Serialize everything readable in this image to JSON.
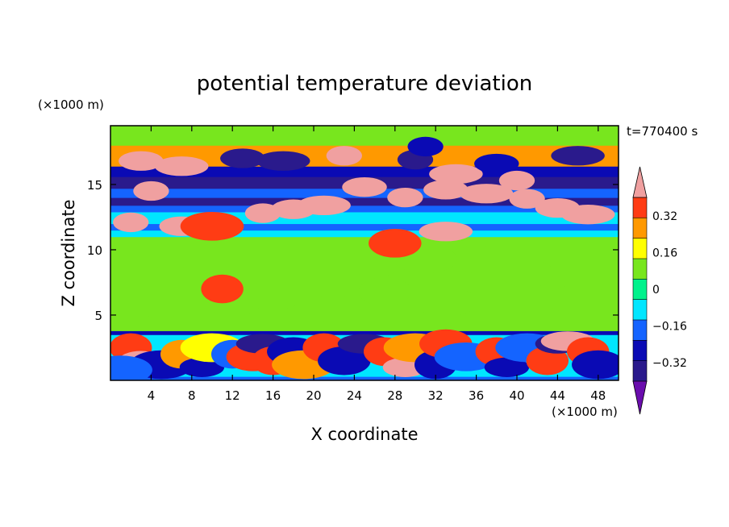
{
  "chart_data": {
    "type": "heatmap",
    "title": "potential temperature deviation",
    "xlabel": "X coordinate",
    "ylabel": "Z coordinate",
    "x_unit": "(×1000 m)",
    "y_unit": "(×1000 m)",
    "time_label": "t=770400 s",
    "xlim": [
      0,
      50
    ],
    "ylim": [
      0,
      19.5
    ],
    "x_ticks": [
      4,
      8,
      12,
      16,
      20,
      24,
      28,
      32,
      36,
      40,
      44,
      48
    ],
    "y_ticks": [
      5,
      10,
      15
    ],
    "colorbar": {
      "levels": [
        -0.4,
        -0.32,
        -0.24,
        -0.16,
        -0.08,
        0,
        0.08,
        0.16,
        0.24,
        0.32,
        0.4
      ],
      "labels": [
        "0.32",
        "0.16",
        "0",
        "−0.16",
        "−0.32"
      ],
      "label_values": [
        0.32,
        0.16,
        0,
        -0.16,
        -0.32
      ],
      "colors": [
        "#6a0dad",
        "#2a1a8c",
        "#0a0ab4",
        "#1464ff",
        "#00e6ff",
        "#00f28c",
        "#78e61e",
        "#ffff00",
        "#ff9900",
        "#ff3c14",
        "#f0a0a0"
      ],
      "extend": "both"
    },
    "bands": [
      {
        "zmin": 0.0,
        "zmax": 0.3,
        "value": -0.2
      },
      {
        "zmin": 0.3,
        "zmax": 3.5,
        "value": -0.1
      },
      {
        "zmin": 3.5,
        "zmax": 3.8,
        "value": -0.28
      },
      {
        "zmin": 3.8,
        "zmax": 11.0,
        "value": 0.0
      },
      {
        "zmin": 11.0,
        "zmax": 11.5,
        "value": -0.1
      },
      {
        "zmin": 11.5,
        "zmax": 12.0,
        "value": -0.2
      },
      {
        "zmin": 12.0,
        "zmax": 12.9,
        "value": -0.16
      },
      {
        "zmin": 12.9,
        "zmax": 13.4,
        "value": -0.2
      },
      {
        "zmin": 13.4,
        "zmax": 14.0,
        "value": -0.34
      },
      {
        "zmin": 14.0,
        "zmax": 14.7,
        "value": -0.2
      },
      {
        "zmin": 14.7,
        "zmax": 15.6,
        "value": -0.34
      },
      {
        "zmin": 15.6,
        "zmax": 16.4,
        "value": -0.27
      },
      {
        "zmin": 16.4,
        "zmax": 18.0,
        "value": 0.2
      },
      {
        "zmin": 18.0,
        "zmax": 19.5,
        "value": 0.05
      }
    ],
    "cells": [
      {
        "x": 5,
        "z": 5.8,
        "value": 0.05
      },
      {
        "x": 12,
        "z": 6.0,
        "value": 0.05
      },
      {
        "x": 16,
        "z": 6.5,
        "value": 0.05
      },
      {
        "x": 22,
        "z": 5.5,
        "value": 0.05
      },
      {
        "x": 27,
        "z": 6.8,
        "value": 0.05
      },
      {
        "x": 33,
        "z": 6.0,
        "value": 0.05
      },
      {
        "x": 36,
        "z": 9.3,
        "value": 0.05
      },
      {
        "x": 41,
        "z": 8.2,
        "value": 0.05
      },
      {
        "x": 46,
        "z": 6.2,
        "value": 0.05
      },
      {
        "x": 6,
        "z": 9.5,
        "value": 0.05
      },
      {
        "x": 26,
        "z": 9.0,
        "value": 0.05
      },
      {
        "x": 31,
        "z": 9.3,
        "value": 0.05
      },
      {
        "x": 2,
        "z": 2.5,
        "value": 0.3
      },
      {
        "x": 3,
        "z": 1.5,
        "value": 0.35
      },
      {
        "x": 5,
        "z": 1.2,
        "value": -0.3
      },
      {
        "x": 7,
        "z": 2.0,
        "value": 0.2
      },
      {
        "x": 9,
        "z": 1.0,
        "value": -0.32
      },
      {
        "x": 10,
        "z": 2.5,
        "value": 0.15
      },
      {
        "x": 12,
        "z": 2.0,
        "value": -0.2
      },
      {
        "x": 14,
        "z": 1.8,
        "value": 0.3
      },
      {
        "x": 15,
        "z": 2.8,
        "value": -0.36
      },
      {
        "x": 16,
        "z": 1.5,
        "value": 0.25
      },
      {
        "x": 18,
        "z": 2.2,
        "value": -0.3
      },
      {
        "x": 19,
        "z": 1.2,
        "value": 0.2
      },
      {
        "x": 21,
        "z": 2.5,
        "value": 0.3
      },
      {
        "x": 23,
        "z": 1.5,
        "value": -0.25
      },
      {
        "x": 25,
        "z": 2.8,
        "value": -0.36
      },
      {
        "x": 27,
        "z": 2.2,
        "value": 0.3
      },
      {
        "x": 29,
        "z": 1.0,
        "value": 0.4
      },
      {
        "x": 30,
        "z": 2.5,
        "value": 0.2
      },
      {
        "x": 32,
        "z": 1.2,
        "value": -0.3
      },
      {
        "x": 33,
        "z": 2.8,
        "value": 0.3
      },
      {
        "x": 35,
        "z": 1.8,
        "value": -0.2
      },
      {
        "x": 38,
        "z": 2.2,
        "value": 0.3
      },
      {
        "x": 39,
        "z": 1.0,
        "value": -0.32
      },
      {
        "x": 41,
        "z": 2.5,
        "value": -0.2
      },
      {
        "x": 43,
        "z": 1.5,
        "value": 0.25
      },
      {
        "x": 44,
        "z": 2.8,
        "value": -0.36
      },
      {
        "x": 45,
        "z": 3.0,
        "value": 0.4
      },
      {
        "x": 47,
        "z": 2.2,
        "value": 0.3
      },
      {
        "x": 48,
        "z": 1.2,
        "value": -0.25
      },
      {
        "x": 1,
        "z": 0.8,
        "value": -0.2
      },
      {
        "x": 11,
        "z": 7.0,
        "value": 0.3
      },
      {
        "x": 28,
        "z": 10.5,
        "value": 0.25
      },
      {
        "x": 33,
        "z": 11.4,
        "value": 0.35
      },
      {
        "x": 2,
        "z": 12.1,
        "value": 0.4
      },
      {
        "x": 7,
        "z": 11.8,
        "value": 0.4
      },
      {
        "x": 10,
        "z": 11.8,
        "value": 0.3
      },
      {
        "x": 15,
        "z": 12.8,
        "value": 0.35
      },
      {
        "x": 18,
        "z": 13.1,
        "value": 0.4
      },
      {
        "x": 21,
        "z": 13.4,
        "value": 0.35
      },
      {
        "x": 29,
        "z": 14.0,
        "value": 0.4
      },
      {
        "x": 33,
        "z": 14.6,
        "value": 0.4
      },
      {
        "x": 37,
        "z": 14.3,
        "value": 0.4
      },
      {
        "x": 41,
        "z": 13.9,
        "value": 0.35
      },
      {
        "x": 44,
        "z": 13.2,
        "value": 0.4
      },
      {
        "x": 47,
        "z": 12.7,
        "value": 0.4
      },
      {
        "x": 4,
        "z": 14.5,
        "value": 0.35
      },
      {
        "x": 25,
        "z": 14.8,
        "value": 0.4
      },
      {
        "x": 34,
        "z": 15.8,
        "value": 0.4
      },
      {
        "x": 40,
        "z": 15.3,
        "value": 0.4
      },
      {
        "x": 3,
        "z": 16.8,
        "value": 0.4
      },
      {
        "x": 7,
        "z": 16.4,
        "value": 0.4
      },
      {
        "x": 23,
        "z": 17.2,
        "value": 0.4
      },
      {
        "x": 13,
        "z": 17.0,
        "value": -0.38
      },
      {
        "x": 17,
        "z": 16.8,
        "value": -0.38
      },
      {
        "x": 30,
        "z": 16.9,
        "value": -0.38
      },
      {
        "x": 38,
        "z": 16.6,
        "value": -0.32
      },
      {
        "x": 46,
        "z": 17.2,
        "value": -0.36
      },
      {
        "x": 31,
        "z": 17.9,
        "value": -0.32
      }
    ]
  }
}
